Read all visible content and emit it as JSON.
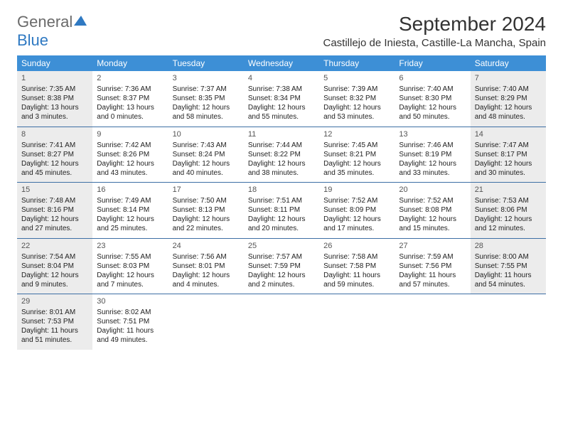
{
  "logo": {
    "text1": "General",
    "text2": "Blue"
  },
  "title": "September 2024",
  "location": "Castillejo de Iniesta, Castille-La Mancha, Spain",
  "colors": {
    "header_bg": "#3d8fd6",
    "header_text": "#ffffff",
    "shaded_bg": "#ececec",
    "sep_line": "#3d6fa5",
    "logo_gray": "#6a6a6a",
    "logo_blue": "#2f79c2"
  },
  "daysOfWeek": [
    "Sunday",
    "Monday",
    "Tuesday",
    "Wednesday",
    "Thursday",
    "Friday",
    "Saturday"
  ],
  "weeks": [
    [
      {
        "num": "1",
        "shaded": true,
        "sunrise": "Sunrise: 7:35 AM",
        "sunset": "Sunset: 8:38 PM",
        "daylight1": "Daylight: 13 hours",
        "daylight2": "and 3 minutes."
      },
      {
        "num": "2",
        "shaded": false,
        "sunrise": "Sunrise: 7:36 AM",
        "sunset": "Sunset: 8:37 PM",
        "daylight1": "Daylight: 13 hours",
        "daylight2": "and 0 minutes."
      },
      {
        "num": "3",
        "shaded": false,
        "sunrise": "Sunrise: 7:37 AM",
        "sunset": "Sunset: 8:35 PM",
        "daylight1": "Daylight: 12 hours",
        "daylight2": "and 58 minutes."
      },
      {
        "num": "4",
        "shaded": false,
        "sunrise": "Sunrise: 7:38 AM",
        "sunset": "Sunset: 8:34 PM",
        "daylight1": "Daylight: 12 hours",
        "daylight2": "and 55 minutes."
      },
      {
        "num": "5",
        "shaded": false,
        "sunrise": "Sunrise: 7:39 AM",
        "sunset": "Sunset: 8:32 PM",
        "daylight1": "Daylight: 12 hours",
        "daylight2": "and 53 minutes."
      },
      {
        "num": "6",
        "shaded": false,
        "sunrise": "Sunrise: 7:40 AM",
        "sunset": "Sunset: 8:30 PM",
        "daylight1": "Daylight: 12 hours",
        "daylight2": "and 50 minutes."
      },
      {
        "num": "7",
        "shaded": true,
        "sunrise": "Sunrise: 7:40 AM",
        "sunset": "Sunset: 8:29 PM",
        "daylight1": "Daylight: 12 hours",
        "daylight2": "and 48 minutes."
      }
    ],
    [
      {
        "num": "8",
        "shaded": true,
        "sunrise": "Sunrise: 7:41 AM",
        "sunset": "Sunset: 8:27 PM",
        "daylight1": "Daylight: 12 hours",
        "daylight2": "and 45 minutes."
      },
      {
        "num": "9",
        "shaded": false,
        "sunrise": "Sunrise: 7:42 AM",
        "sunset": "Sunset: 8:26 PM",
        "daylight1": "Daylight: 12 hours",
        "daylight2": "and 43 minutes."
      },
      {
        "num": "10",
        "shaded": false,
        "sunrise": "Sunrise: 7:43 AM",
        "sunset": "Sunset: 8:24 PM",
        "daylight1": "Daylight: 12 hours",
        "daylight2": "and 40 minutes."
      },
      {
        "num": "11",
        "shaded": false,
        "sunrise": "Sunrise: 7:44 AM",
        "sunset": "Sunset: 8:22 PM",
        "daylight1": "Daylight: 12 hours",
        "daylight2": "and 38 minutes."
      },
      {
        "num": "12",
        "shaded": false,
        "sunrise": "Sunrise: 7:45 AM",
        "sunset": "Sunset: 8:21 PM",
        "daylight1": "Daylight: 12 hours",
        "daylight2": "and 35 minutes."
      },
      {
        "num": "13",
        "shaded": false,
        "sunrise": "Sunrise: 7:46 AM",
        "sunset": "Sunset: 8:19 PM",
        "daylight1": "Daylight: 12 hours",
        "daylight2": "and 33 minutes."
      },
      {
        "num": "14",
        "shaded": true,
        "sunrise": "Sunrise: 7:47 AM",
        "sunset": "Sunset: 8:17 PM",
        "daylight1": "Daylight: 12 hours",
        "daylight2": "and 30 minutes."
      }
    ],
    [
      {
        "num": "15",
        "shaded": true,
        "sunrise": "Sunrise: 7:48 AM",
        "sunset": "Sunset: 8:16 PM",
        "daylight1": "Daylight: 12 hours",
        "daylight2": "and 27 minutes."
      },
      {
        "num": "16",
        "shaded": false,
        "sunrise": "Sunrise: 7:49 AM",
        "sunset": "Sunset: 8:14 PM",
        "daylight1": "Daylight: 12 hours",
        "daylight2": "and 25 minutes."
      },
      {
        "num": "17",
        "shaded": false,
        "sunrise": "Sunrise: 7:50 AM",
        "sunset": "Sunset: 8:13 PM",
        "daylight1": "Daylight: 12 hours",
        "daylight2": "and 22 minutes."
      },
      {
        "num": "18",
        "shaded": false,
        "sunrise": "Sunrise: 7:51 AM",
        "sunset": "Sunset: 8:11 PM",
        "daylight1": "Daylight: 12 hours",
        "daylight2": "and 20 minutes."
      },
      {
        "num": "19",
        "shaded": false,
        "sunrise": "Sunrise: 7:52 AM",
        "sunset": "Sunset: 8:09 PM",
        "daylight1": "Daylight: 12 hours",
        "daylight2": "and 17 minutes."
      },
      {
        "num": "20",
        "shaded": false,
        "sunrise": "Sunrise: 7:52 AM",
        "sunset": "Sunset: 8:08 PM",
        "daylight1": "Daylight: 12 hours",
        "daylight2": "and 15 minutes."
      },
      {
        "num": "21",
        "shaded": true,
        "sunrise": "Sunrise: 7:53 AM",
        "sunset": "Sunset: 8:06 PM",
        "daylight1": "Daylight: 12 hours",
        "daylight2": "and 12 minutes."
      }
    ],
    [
      {
        "num": "22",
        "shaded": true,
        "sunrise": "Sunrise: 7:54 AM",
        "sunset": "Sunset: 8:04 PM",
        "daylight1": "Daylight: 12 hours",
        "daylight2": "and 9 minutes."
      },
      {
        "num": "23",
        "shaded": false,
        "sunrise": "Sunrise: 7:55 AM",
        "sunset": "Sunset: 8:03 PM",
        "daylight1": "Daylight: 12 hours",
        "daylight2": "and 7 minutes."
      },
      {
        "num": "24",
        "shaded": false,
        "sunrise": "Sunrise: 7:56 AM",
        "sunset": "Sunset: 8:01 PM",
        "daylight1": "Daylight: 12 hours",
        "daylight2": "and 4 minutes."
      },
      {
        "num": "25",
        "shaded": false,
        "sunrise": "Sunrise: 7:57 AM",
        "sunset": "Sunset: 7:59 PM",
        "daylight1": "Daylight: 12 hours",
        "daylight2": "and 2 minutes."
      },
      {
        "num": "26",
        "shaded": false,
        "sunrise": "Sunrise: 7:58 AM",
        "sunset": "Sunset: 7:58 PM",
        "daylight1": "Daylight: 11 hours",
        "daylight2": "and 59 minutes."
      },
      {
        "num": "27",
        "shaded": false,
        "sunrise": "Sunrise: 7:59 AM",
        "sunset": "Sunset: 7:56 PM",
        "daylight1": "Daylight: 11 hours",
        "daylight2": "and 57 minutes."
      },
      {
        "num": "28",
        "shaded": true,
        "sunrise": "Sunrise: 8:00 AM",
        "sunset": "Sunset: 7:55 PM",
        "daylight1": "Daylight: 11 hours",
        "daylight2": "and 54 minutes."
      }
    ],
    [
      {
        "num": "29",
        "shaded": true,
        "sunrise": "Sunrise: 8:01 AM",
        "sunset": "Sunset: 7:53 PM",
        "daylight1": "Daylight: 11 hours",
        "daylight2": "and 51 minutes."
      },
      {
        "num": "30",
        "shaded": false,
        "sunrise": "Sunrise: 8:02 AM",
        "sunset": "Sunset: 7:51 PM",
        "daylight1": "Daylight: 11 hours",
        "daylight2": "and 49 minutes."
      },
      null,
      null,
      null,
      null,
      null
    ]
  ]
}
